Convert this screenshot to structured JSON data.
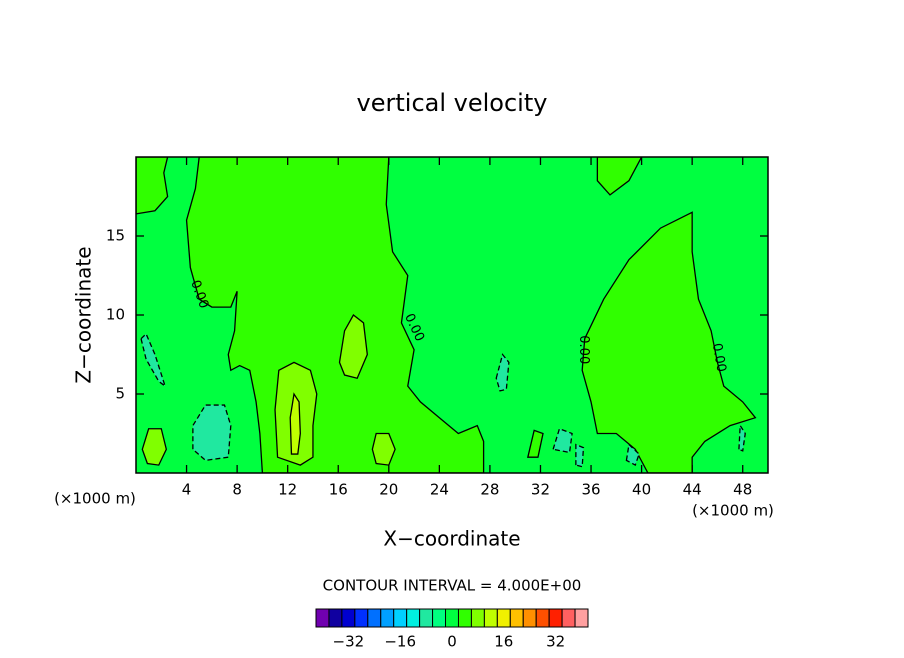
{
  "chart_data": {
    "type": "contour",
    "title": "vertical velocity",
    "x_label": "X−coordinate",
    "y_label": "Z−coordinate",
    "x_unit_label": "(×1000 m)",
    "y_unit_label": "(×1000 m)",
    "contour_interval_text": "CONTOUR INTERVAL = 4.000E+00",
    "xlim": [
      0,
      50
    ],
    "ylim": [
      0,
      20
    ],
    "xticks": [
      4,
      8,
      12,
      16,
      20,
      24,
      28,
      32,
      36,
      40,
      44,
      48
    ],
    "yticks": [
      5,
      10,
      15
    ],
    "background_level": 0,
    "regions": [
      {
        "level": 4,
        "x": [
          5,
          20,
          19.8,
          20.3,
          21.5,
          21,
          22,
          21.5,
          22.5,
          24,
          25.5,
          27,
          27.5,
          27.5,
          10,
          9.8,
          9.5,
          9,
          8.2,
          7.5,
          7.3,
          7.8,
          8,
          7.5,
          6,
          5,
          4.3,
          4,
          4.7
        ],
        "z": [
          20,
          20,
          17,
          14,
          12.5,
          9.5,
          7.8,
          5.5,
          4.5,
          3.5,
          2.5,
          3,
          2,
          0,
          0,
          2.5,
          4.5,
          6.5,
          6.8,
          6.5,
          7.5,
          9,
          11.5,
          10.5,
          10.5,
          11,
          13,
          16,
          18
        ]
      },
      {
        "level": 4,
        "x": [
          35.3,
          35.5,
          37,
          39,
          41.5,
          44,
          44,
          44.5,
          45.5,
          46,
          46.5,
          48,
          49,
          47,
          45,
          44,
          44,
          40.5,
          39.5,
          38,
          36.5,
          36
        ],
        "z": [
          6.5,
          8.5,
          11,
          13.5,
          15.5,
          16.5,
          14,
          11,
          9,
          7,
          5.5,
          4.5,
          3.5,
          3,
          2,
          1,
          0,
          0,
          1.5,
          2.5,
          2.5,
          4.5
        ]
      },
      {
        "level": 4,
        "x": [
          0,
          1.5,
          2.5,
          2.2,
          2.5,
          0
        ],
        "z": [
          16.4,
          16.6,
          17.5,
          19,
          20,
          20
        ]
      },
      {
        "level": 4,
        "x": [
          36.5,
          36.5,
          37.5,
          39,
          40
        ],
        "z": [
          20,
          18.5,
          17.6,
          18.5,
          20
        ]
      },
      {
        "level": 4,
        "x": [
          31,
          31.5,
          32.2,
          31.8
        ],
        "z": [
          1,
          2.7,
          2.5,
          1
        ]
      },
      {
        "level": 8,
        "x": [
          11.2,
          11,
          11.3,
          12.5,
          13.8,
          14.3,
          14,
          14,
          13
        ],
        "z": [
          1,
          4,
          6.5,
          7,
          6.5,
          5,
          3,
          1,
          0.5
        ]
      },
      {
        "level": 8,
        "x": [
          16.1,
          16.5,
          17.2,
          18,
          18.3,
          17.5,
          16.5
        ],
        "z": [
          7,
          9,
          10,
          9.5,
          7.5,
          6,
          6.2
        ]
      },
      {
        "level": 8,
        "x": [
          18.7,
          19,
          20,
          20.5,
          20,
          19
        ],
        "z": [
          1.5,
          2.5,
          2.5,
          1.5,
          0.5,
          0.6
        ]
      },
      {
        "level": 8,
        "x": [
          0.5,
          1,
          2,
          2.4,
          1.8,
          0.9
        ],
        "z": [
          1.5,
          2.8,
          2.8,
          1.5,
          0.5,
          0.6
        ]
      },
      {
        "level": 12,
        "x": [
          12.3,
          12.2,
          12.5,
          12.9,
          13,
          12.8
        ],
        "z": [
          1.2,
          3.5,
          5,
          4.5,
          2.5,
          1.2
        ]
      },
      {
        "level": -8,
        "x": [
          0.4,
          0.8,
          1.5,
          2.3,
          1.8,
          0.8
        ],
        "z": [
          8.5,
          8.8,
          7.5,
          5.5,
          5.8,
          7.2
        ]
      },
      {
        "level": -8,
        "x": [
          4.5,
          4.5,
          5.5,
          7,
          7.5,
          7.3,
          5.5
        ],
        "z": [
          1.5,
          3,
          4.3,
          4.3,
          3,
          1,
          0.8
        ]
      },
      {
        "level": -8,
        "x": [
          28.5,
          29,
          29.5,
          29.3,
          28.8
        ],
        "z": [
          6,
          7.5,
          7,
          5.3,
          5.2
        ]
      },
      {
        "level": -8,
        "x": [
          33,
          33.5,
          34.5,
          34.3
        ],
        "z": [
          1.5,
          2.8,
          2.5,
          1.3
        ]
      },
      {
        "level": -8,
        "x": [
          34.8,
          34.8,
          35.4,
          35.3
        ],
        "z": [
          0.5,
          1.8,
          1.6,
          0.4
        ]
      },
      {
        "level": -8,
        "x": [
          38.8,
          39,
          39.8,
          39.5
        ],
        "z": [
          0.8,
          1.8,
          1.2,
          0.5
        ]
      },
      {
        "level": -8,
        "x": [
          47.7,
          47.8,
          48.2,
          48
        ],
        "z": [
          1.5,
          3,
          2.5,
          1.4
        ]
      }
    ],
    "contour_labels": [
      {
        "text": "0.00",
        "x": 5,
        "z": 11.3
      },
      {
        "text": "0.00",
        "x": 22,
        "z": 9.2
      },
      {
        "text": "0.00",
        "x": 35.4,
        "z": 7.8
      },
      {
        "text": "0.00",
        "x": 46.1,
        "z": 7.3
      }
    ],
    "colorbar": {
      "levels": [
        -40,
        -36,
        -32,
        -28,
        -24,
        -20,
        -16,
        -12,
        -8,
        -4,
        0,
        4,
        8,
        12,
        16,
        20,
        24,
        28,
        32,
        36,
        40
      ],
      "colors": [
        "#7000b0",
        "#1000a0",
        "#0000d0",
        "#0030ff",
        "#0070ff",
        "#00a0ff",
        "#00d0ff",
        "#00f0e0",
        "#20e8a0",
        "#00ff80",
        "#00ff40",
        "#30ff00",
        "#80ff00",
        "#c0ff00",
        "#f0f000",
        "#ffc000",
        "#ff9000",
        "#ff5000",
        "#ff2000",
        "#ff6060",
        "#ffa0a0"
      ],
      "ticks": [
        {
          "value": -32,
          "label": "−32"
        },
        {
          "value": -16,
          "label": "−16"
        },
        0,
        16,
        32
      ]
    }
  }
}
